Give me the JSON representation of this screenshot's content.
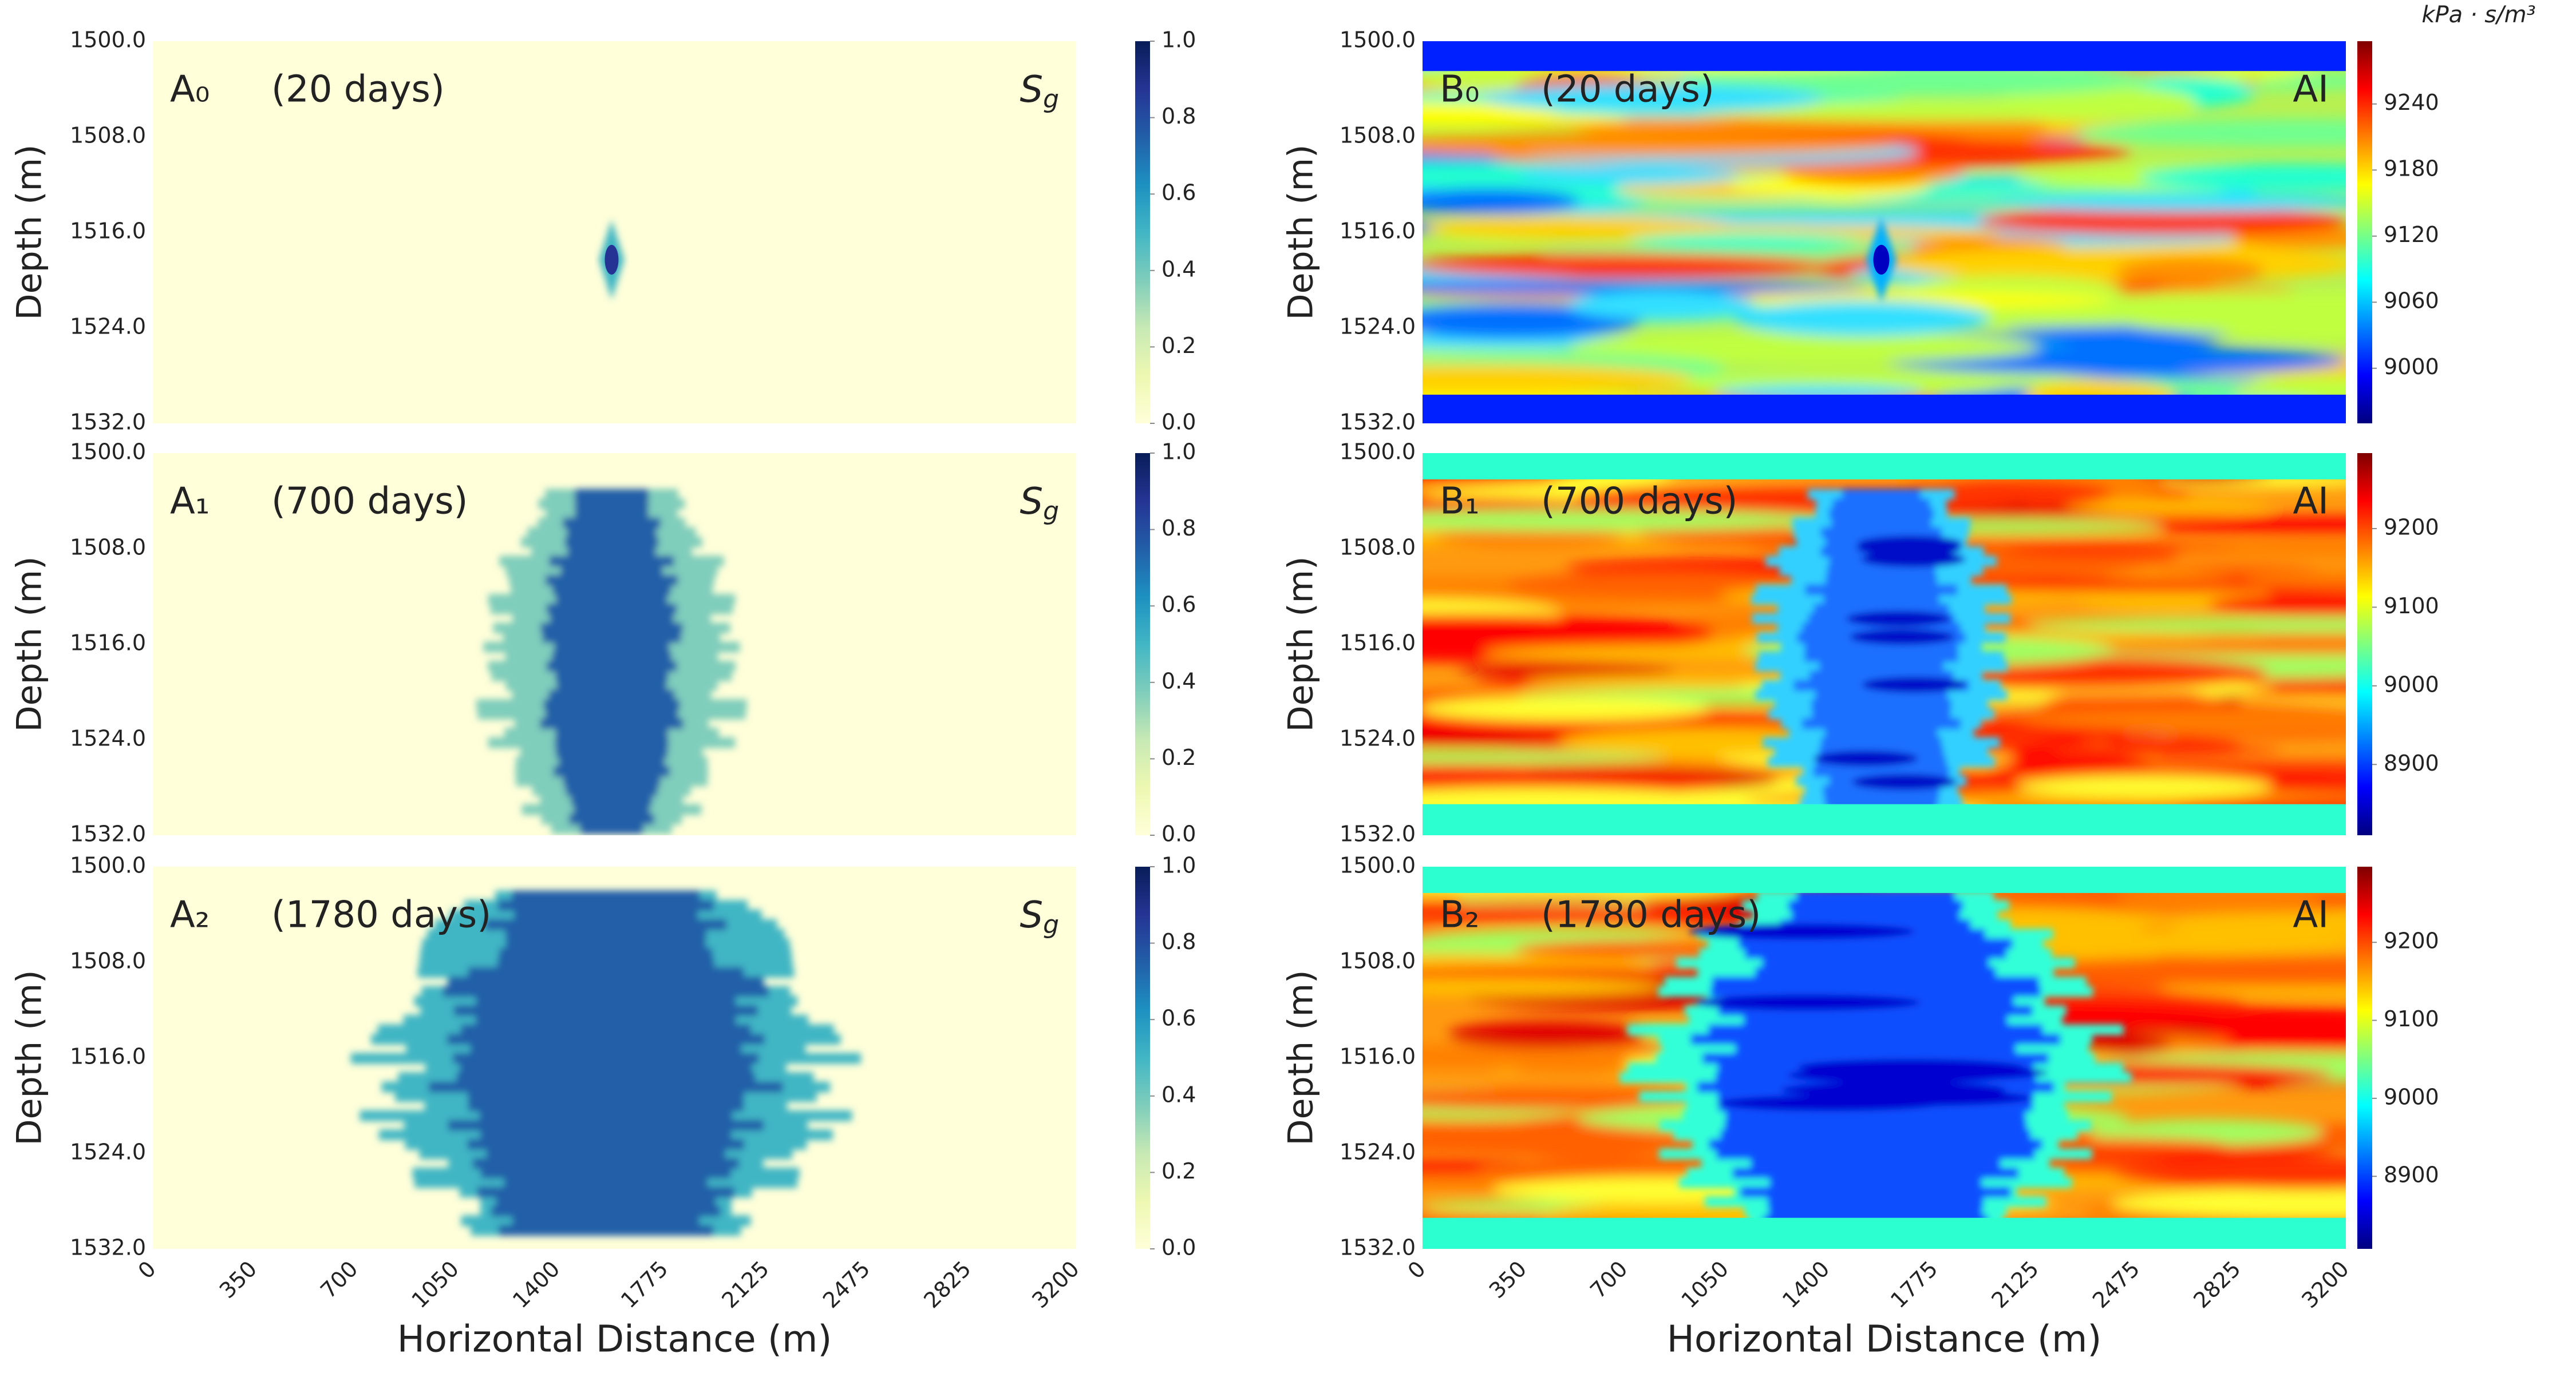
{
  "chart_data": [
    {
      "type": "heatmap",
      "label": "A₀",
      "time": "(20 days)",
      "quantity": {
        "symbol": "S",
        "subscript": "g"
      },
      "ylabel": "Depth (m)",
      "xlim": [
        0,
        3200
      ],
      "ylim": [
        1500,
        1532
      ],
      "yticks": [
        {
          "value": 1500,
          "label": "1500.0"
        },
        {
          "value": 1508,
          "label": "1508.0"
        },
        {
          "value": 1516,
          "label": "1516.0"
        },
        {
          "value": 1524,
          "label": "1524.0"
        },
        {
          "value": 1532,
          "label": "1532.0"
        }
      ],
      "colorbar": {
        "colormap": "YlGnBu",
        "lim": [
          0,
          1
        ],
        "ticks": [
          {
            "value": 0,
            "label": "0.0"
          },
          {
            "value": 0.2,
            "label": "0.2"
          },
          {
            "value": 0.4,
            "label": "0.4"
          },
          {
            "value": 0.6,
            "label": "0.6"
          },
          {
            "value": 0.8,
            "label": "0.8"
          },
          {
            "value": 1,
            "label": "1.0"
          }
        ]
      }
    },
    {
      "type": "heatmap",
      "label": "A₁",
      "time": "(700 days)",
      "quantity": {
        "symbol": "S",
        "subscript": "g"
      },
      "ylabel": "Depth (m)",
      "xlim": [
        0,
        3200
      ],
      "ylim": [
        1500,
        1532
      ],
      "yticks": [
        {
          "value": 1500,
          "label": "1500.0"
        },
        {
          "value": 1508,
          "label": "1508.0"
        },
        {
          "value": 1516,
          "label": "1516.0"
        },
        {
          "value": 1524,
          "label": "1524.0"
        },
        {
          "value": 1532,
          "label": "1532.0"
        }
      ],
      "colorbar": {
        "colormap": "YlGnBu",
        "lim": [
          0,
          1
        ],
        "ticks": [
          {
            "value": 0,
            "label": "0.0"
          },
          {
            "value": 0.2,
            "label": "0.2"
          },
          {
            "value": 0.4,
            "label": "0.4"
          },
          {
            "value": 0.6,
            "label": "0.6"
          },
          {
            "value": 0.8,
            "label": "0.8"
          },
          {
            "value": 1,
            "label": "1.0"
          }
        ]
      }
    },
    {
      "type": "heatmap",
      "label": "A₂",
      "time": "(1780 days)",
      "quantity": {
        "symbol": "S",
        "subscript": "g"
      },
      "ylabel": "Depth (m)",
      "xlabel": "Horizontal Distance (m)",
      "xlim": [
        0,
        3200
      ],
      "xticks": [
        0,
        350,
        700,
        1050,
        1400,
        1775,
        2125,
        2475,
        2825,
        3200
      ],
      "ylim": [
        1500,
        1532
      ],
      "yticks": [
        {
          "value": 1500,
          "label": "1500.0"
        },
        {
          "value": 1508,
          "label": "1508.0"
        },
        {
          "value": 1516,
          "label": "1516.0"
        },
        {
          "value": 1524,
          "label": "1524.0"
        },
        {
          "value": 1532,
          "label": "1532.0"
        }
      ],
      "colorbar": {
        "colormap": "YlGnBu",
        "lim": [
          0,
          1
        ],
        "ticks": [
          {
            "value": 0,
            "label": "0.0"
          },
          {
            "value": 0.2,
            "label": "0.2"
          },
          {
            "value": 0.4,
            "label": "0.4"
          },
          {
            "value": 0.6,
            "label": "0.6"
          },
          {
            "value": 0.8,
            "label": "0.8"
          },
          {
            "value": 1,
            "label": "1.0"
          }
        ]
      }
    },
    {
      "type": "heatmap",
      "label": "B₀",
      "time": "(20 days)",
      "quantity": "AI",
      "ylabel": "Depth (m)",
      "xlim": [
        0,
        3200
      ],
      "ylim": [
        1500,
        1532
      ],
      "yticks": [
        {
          "value": 1500,
          "label": "1500.0"
        },
        {
          "value": 1508,
          "label": "1508.0"
        },
        {
          "value": 1516,
          "label": "1516.0"
        },
        {
          "value": 1524,
          "label": "1524.0"
        },
        {
          "value": 1532,
          "label": "1532.0"
        }
      ],
      "colorbar": {
        "colormap": "jet",
        "label": "kPa · s/m³",
        "lim": [
          8950,
          9297
        ],
        "ticks": [
          9000,
          9060,
          9120,
          9180,
          9240
        ]
      }
    },
    {
      "type": "heatmap",
      "label": "B₁",
      "time": "(700 days)",
      "quantity": "AI",
      "ylabel": "Depth (m)",
      "xlim": [
        0,
        3200
      ],
      "ylim": [
        1500,
        1532
      ],
      "yticks": [
        {
          "value": 1500,
          "label": "1500.0"
        },
        {
          "value": 1508,
          "label": "1508.0"
        },
        {
          "value": 1516,
          "label": "1516.0"
        },
        {
          "value": 1524,
          "label": "1524.0"
        },
        {
          "value": 1532,
          "label": "1532.0"
        }
      ],
      "colorbar": {
        "colormap": "jet",
        "lim": [
          8810,
          9296
        ],
        "ticks": [
          8900,
          9000,
          9100,
          9200
        ]
      }
    },
    {
      "type": "heatmap",
      "label": "B₂",
      "time": "(1780 days)",
      "quantity": "AI",
      "ylabel": "Depth (m)",
      "xlabel": "Horizontal Distance (m)",
      "xlim": [
        0,
        3200
      ],
      "xticks": [
        0,
        350,
        700,
        1050,
        1400,
        1775,
        2125,
        2475,
        2825,
        3200
      ],
      "ylim": [
        1500,
        1532
      ],
      "yticks": [
        {
          "value": 1500,
          "label": "1500.0"
        },
        {
          "value": 1508,
          "label": "1508.0"
        },
        {
          "value": 1516,
          "label": "1516.0"
        },
        {
          "value": 1524,
          "label": "1524.0"
        },
        {
          "value": 1532,
          "label": "1532.0"
        }
      ],
      "colorbar": {
        "colormap": "jet",
        "lim": [
          8807,
          9297
        ],
        "ticks": [
          8900,
          9000,
          9100,
          9200
        ]
      }
    }
  ]
}
